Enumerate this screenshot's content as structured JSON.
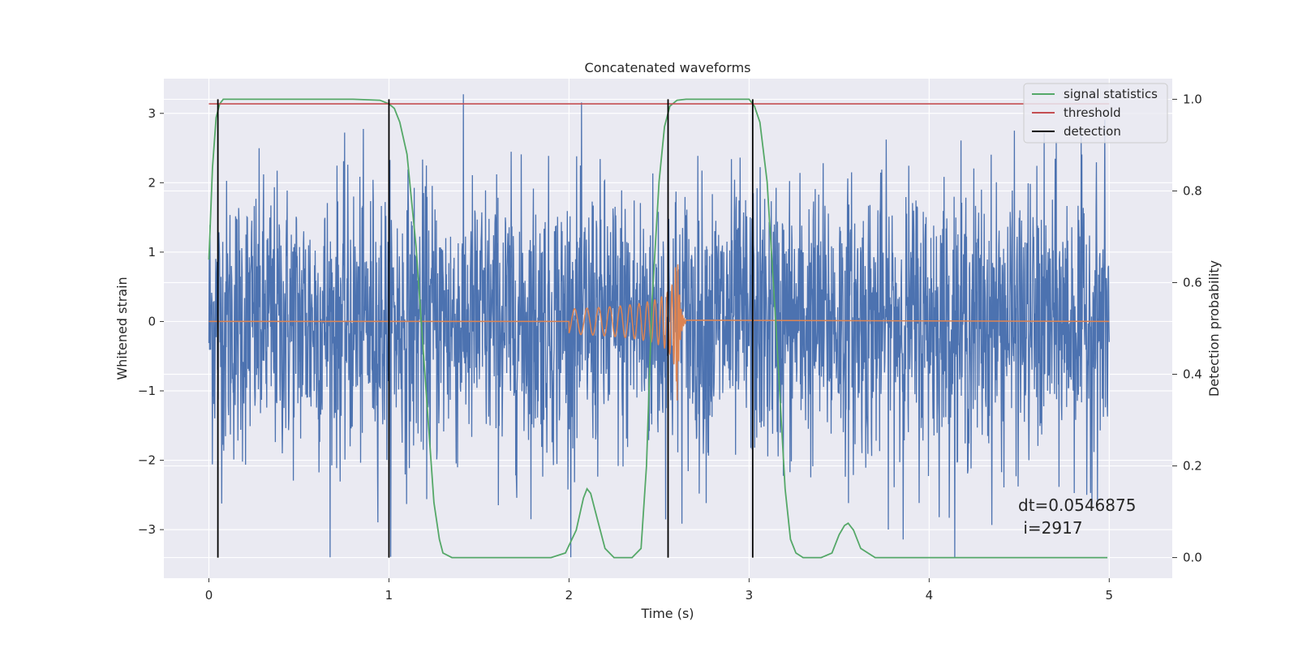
{
  "chart_data": {
    "type": "line",
    "title": "Concatenated waveforms",
    "xlabel": "Time (s)",
    "ylabel_left": "Whitened strain",
    "ylabel_right": "Detection probability",
    "xlim": [
      -0.25,
      5.35
    ],
    "ylim_left": [
      -3.7,
      3.5
    ],
    "ylim_right": [
      -0.045,
      1.045
    ],
    "x_ticks": [
      0,
      1,
      2,
      3,
      4,
      5
    ],
    "x_tick_labels": [
      "0",
      "1",
      "2",
      "3",
      "4",
      "5"
    ],
    "y_left_ticks": [
      3,
      2,
      1,
      0,
      -1,
      -2,
      -3
    ],
    "y_left_tick_labels": [
      "3",
      "2",
      "1",
      "0",
      "−1",
      "−2",
      "−3"
    ],
    "y_right_ticks": [
      1.0,
      0.8,
      0.6,
      0.4,
      0.2,
      0.0
    ],
    "y_right_tick_labels": [
      "1.0",
      "0.8",
      "0.6",
      "0.4",
      "0.2",
      "0.0"
    ],
    "grid": true,
    "background_color": "#eaeaf2",
    "legend_position": "top-right",
    "noise_series": {
      "color": "#4c72b0",
      "x_range": [
        0,
        5
      ],
      "typical_amplitude": 1.0,
      "max_abs": 3.4
    },
    "chirp_series": {
      "color": "#dd8452",
      "x_range": [
        2.0,
        2.65
      ],
      "peak_time": 2.6,
      "peak_amplitude": 1.0,
      "min_amplitude": -1.4
    },
    "series": [
      {
        "name": "signal statistics",
        "color": "#55a868",
        "x": [
          0,
          0.02,
          0.04,
          0.06,
          0.08,
          0.1,
          0.2,
          0.5,
          0.8,
          0.95,
          1.0,
          1.03,
          1.06,
          1.1,
          1.15,
          1.2,
          1.25,
          1.28,
          1.3,
          1.35,
          1.5,
          1.9,
          1.98,
          2.04,
          2.08,
          2.1,
          2.12,
          2.16,
          2.2,
          2.25,
          2.3,
          2.35,
          2.4,
          2.43,
          2.46,
          2.5,
          2.53,
          2.56,
          2.6,
          2.65,
          2.7,
          2.8,
          2.9,
          3.0,
          3.03,
          3.06,
          3.1,
          3.15,
          3.2,
          3.23,
          3.26,
          3.3,
          3.4,
          3.46,
          3.5,
          3.53,
          3.55,
          3.58,
          3.62,
          3.7,
          3.8,
          4.0,
          4.5,
          4.99
        ],
        "y": [
          0.65,
          0.85,
          0.96,
          0.99,
          1.0,
          1.0,
          1.0,
          1.0,
          1.0,
          0.998,
          0.99,
          0.98,
          0.95,
          0.88,
          0.68,
          0.4,
          0.12,
          0.04,
          0.01,
          0.0,
          0.0,
          0.0,
          0.01,
          0.06,
          0.13,
          0.15,
          0.14,
          0.08,
          0.02,
          0.0,
          0.0,
          0.0,
          0.02,
          0.2,
          0.55,
          0.82,
          0.94,
          0.985,
          0.998,
          1.0,
          1.0,
          1.0,
          1.0,
          1.0,
          0.985,
          0.95,
          0.82,
          0.5,
          0.15,
          0.04,
          0.01,
          0.0,
          0.0,
          0.01,
          0.05,
          0.07,
          0.075,
          0.06,
          0.02,
          0.0,
          0.0,
          0.0,
          0.0,
          0.0
        ]
      },
      {
        "name": "threshold",
        "color": "#c44e52",
        "x": [
          0,
          5
        ],
        "y": [
          0.99,
          0.99
        ]
      },
      {
        "name": "detection",
        "color": "#000000",
        "x": [
          0.05,
          1.0,
          2.55,
          3.02
        ]
      }
    ],
    "annotation": {
      "line1": "dt=0.0546875",
      "line2": " i=2917"
    }
  }
}
